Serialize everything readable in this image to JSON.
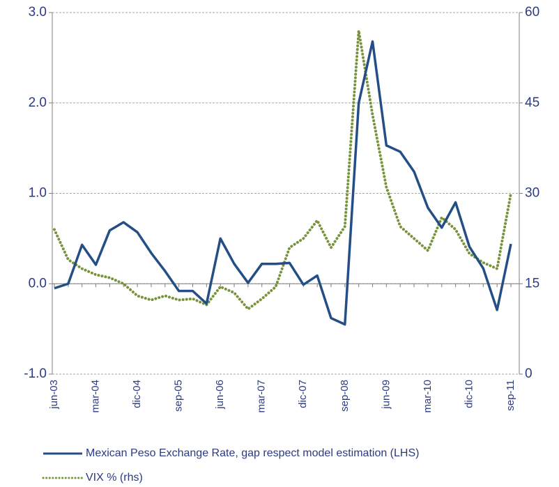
{
  "chart_data": {
    "type": "line",
    "categories": [
      "jun-03",
      null,
      null,
      "mar-04",
      null,
      null,
      "dic-04",
      null,
      null,
      "sep-05",
      null,
      null,
      "jun-06",
      null,
      null,
      "mar-07",
      null,
      null,
      "dic-07",
      null,
      null,
      "sep-08",
      null,
      null,
      "jun-09",
      null,
      null,
      "mar-10",
      null,
      null,
      "dic-10",
      null,
      null,
      "sep-11"
    ],
    "series": [
      {
        "name": "Mexican Peso Exchange Rate, gap respect model estimation (LHS)",
        "color": "#244e86",
        "dash": "solid",
        "axis": "y",
        "values": [
          -0.05,
          0.0,
          0.43,
          0.21,
          0.59,
          0.68,
          0.57,
          0.34,
          0.14,
          -0.08,
          -0.08,
          -0.22,
          0.5,
          0.22,
          0.01,
          0.22,
          0.22,
          0.23,
          -0.01,
          0.09,
          -0.38,
          -0.45,
          2.0,
          2.68,
          1.53,
          1.46,
          1.24,
          0.84,
          0.62,
          0.9,
          0.41,
          0.17,
          -0.29,
          0.44
        ]
      },
      {
        "name": "VIX % (rhs)",
        "color": "#77933c",
        "dash": "dotted",
        "axis": "y2",
        "values": [
          24,
          19,
          17.5,
          16.5,
          16,
          15,
          13,
          12.3,
          13,
          12.3,
          12.5,
          11.5,
          14.5,
          13.5,
          10.8,
          12.5,
          14.5,
          21,
          22.5,
          25.5,
          21,
          24.5,
          57,
          43,
          31,
          24.5,
          22.5,
          20.5,
          26,
          24,
          20,
          18.5,
          17.5,
          30
        ]
      }
    ],
    "ylim": [
      -1,
      3
    ],
    "yticks": [
      {
        "value": -1,
        "label": "-1.0"
      },
      {
        "value": 0,
        "label": "0.0"
      },
      {
        "value": 1,
        "label": "1.0"
      },
      {
        "value": 2,
        "label": "2.0"
      },
      {
        "value": 3,
        "label": "3.0"
      }
    ],
    "y2lim": [
      0,
      60
    ],
    "y2ticks": [
      0,
      15,
      30,
      45,
      60
    ],
    "grid": true
  }
}
